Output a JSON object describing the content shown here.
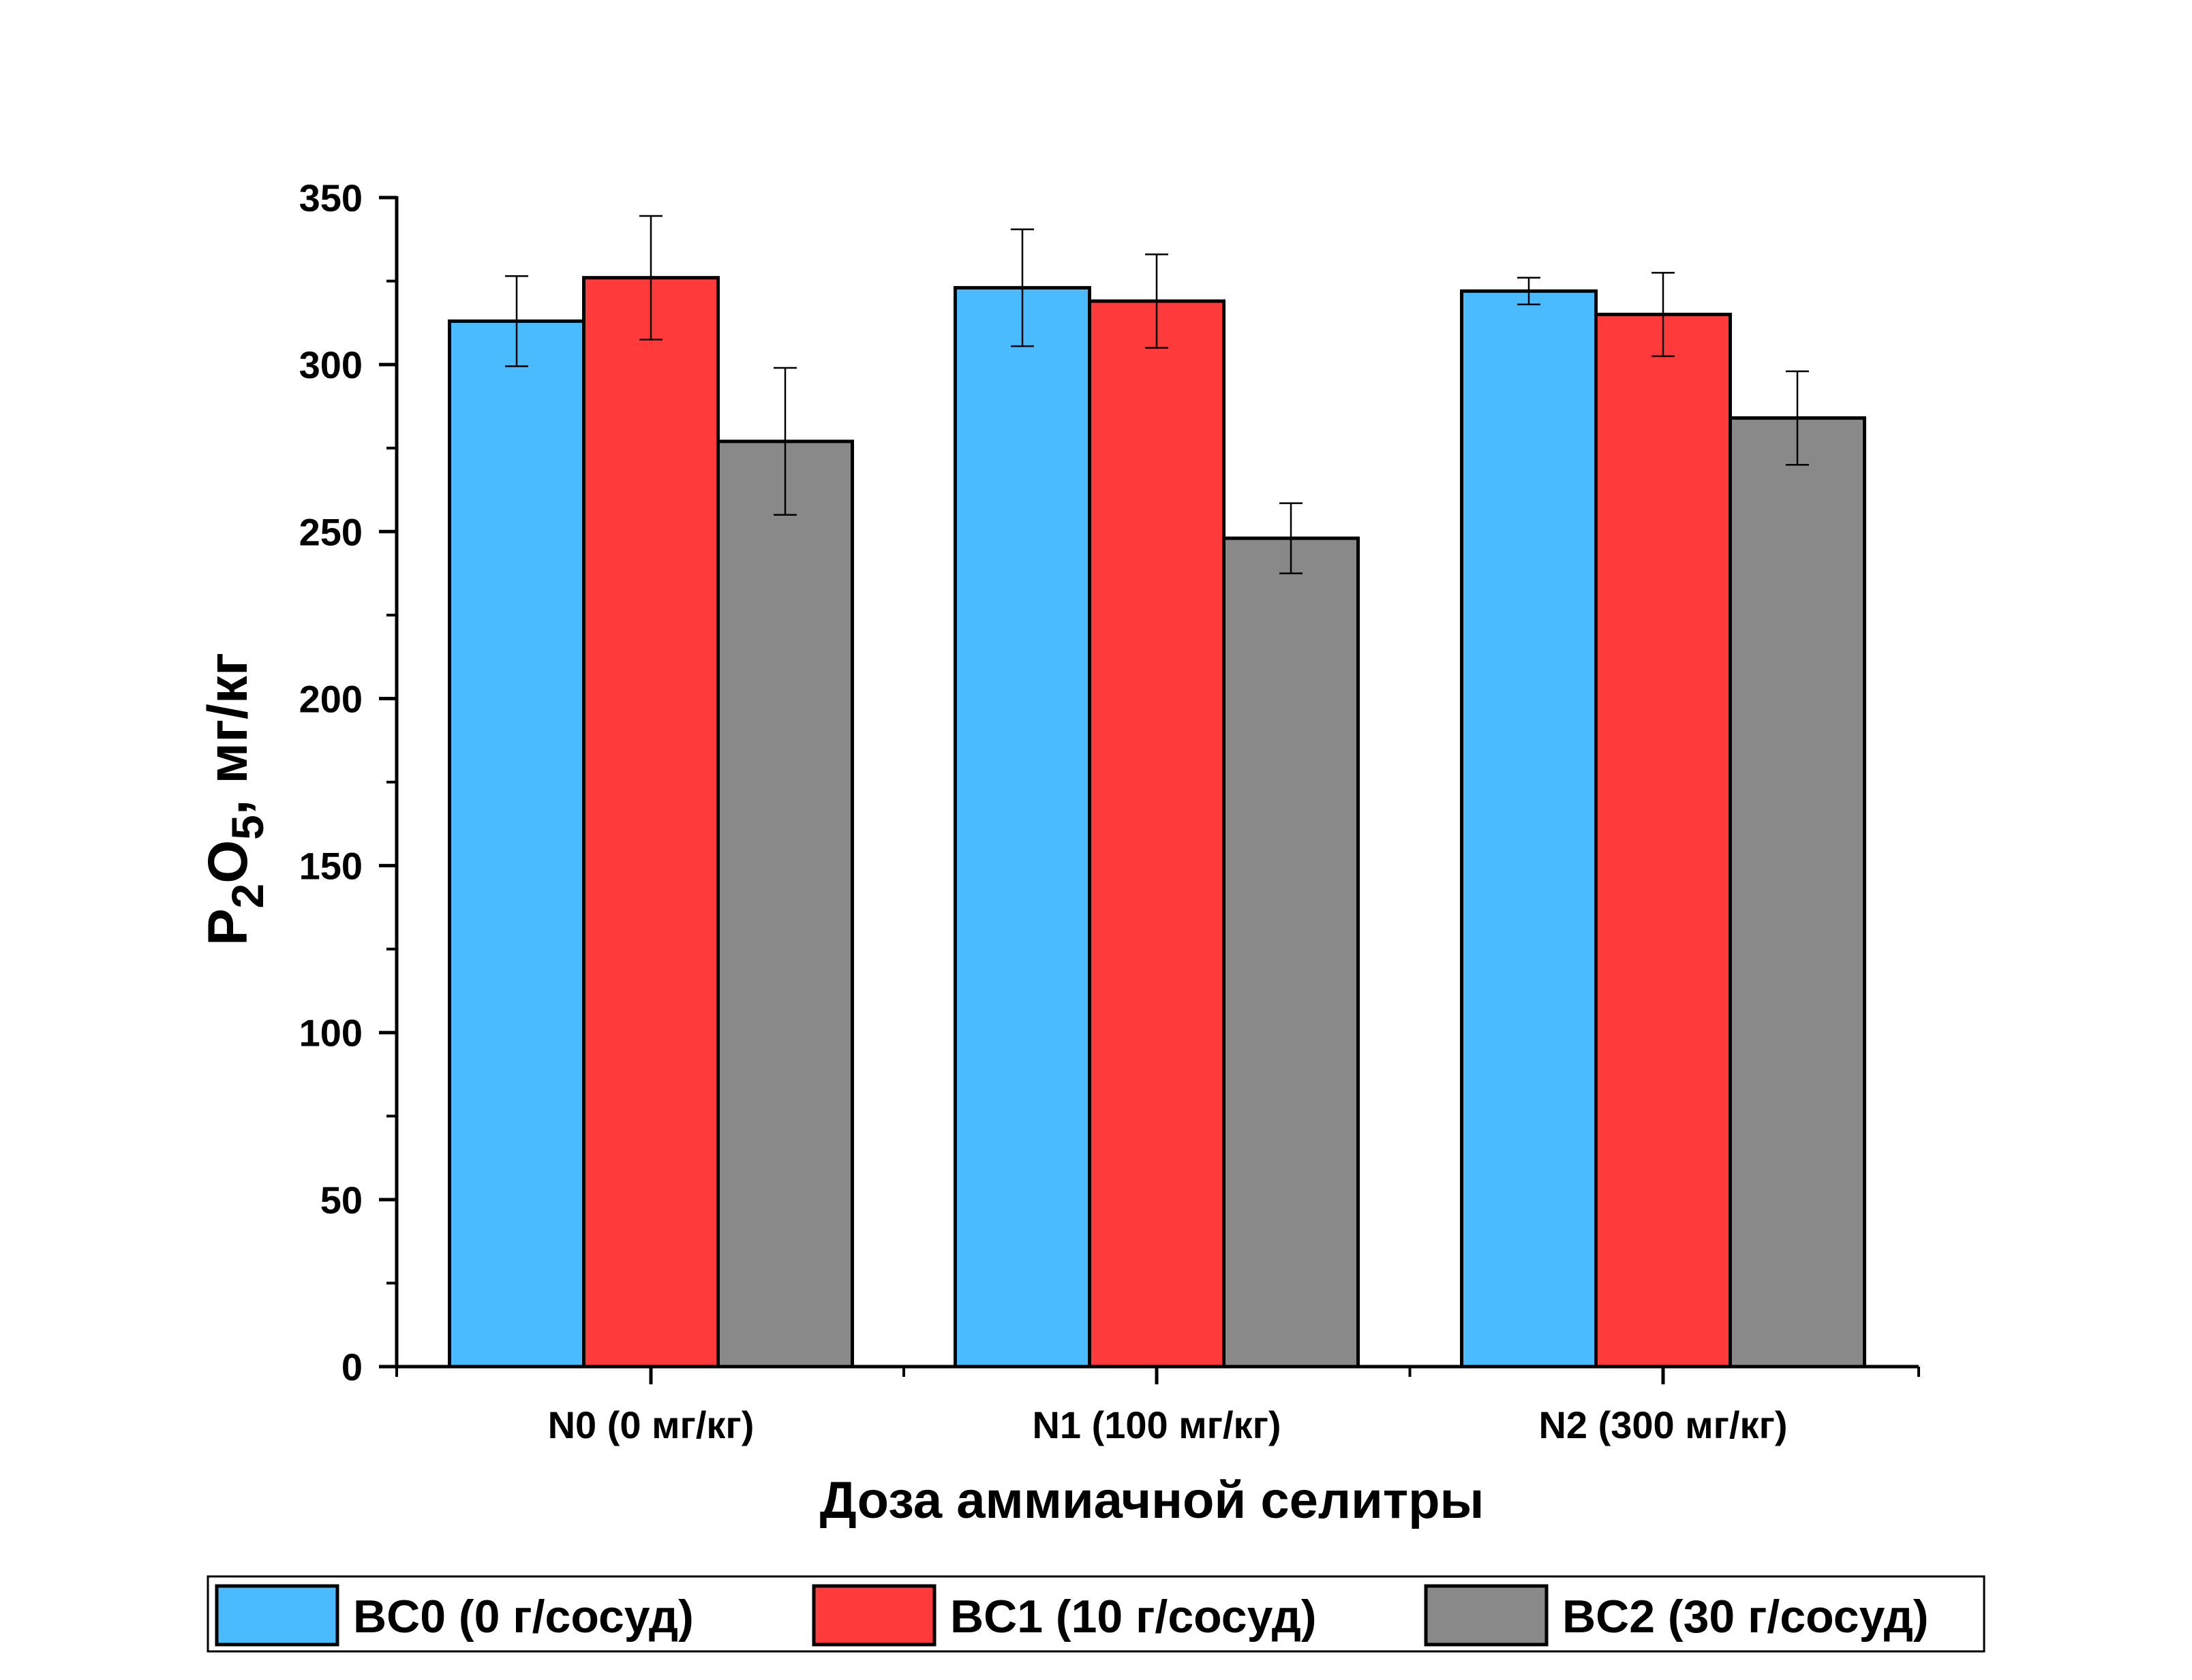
{
  "chart_data": {
    "type": "bar",
    "title": "",
    "xlabel": "Доза аммиачной селитры",
    "ylabel": {
      "p": "P",
      "sub1": "2",
      "o": "O",
      "sub2": "5",
      "rest": ", мг/кг"
    },
    "categories": [
      "N0 (0 мг/кг)",
      "N1 (100 мг/кг)",
      "N2 (300 мг/кг)"
    ],
    "ylim": [
      0,
      350
    ],
    "yticks": [
      0,
      50,
      100,
      150,
      200,
      250,
      300,
      350
    ],
    "grid": false,
    "legend_position": "bottom",
    "series": [
      {
        "name": "BC0 (0 г/сосуд)",
        "color": "#4bbbff",
        "values": [
          313,
          323,
          322
        ],
        "errors": [
          13.5,
          17.5,
          4
        ]
      },
      {
        "name": "BC1 (10 г/сосуд)",
        "color": "#ff3a3a",
        "values": [
          326,
          319,
          315
        ],
        "errors": [
          18.5,
          14,
          12.5
        ]
      },
      {
        "name": "BC2 (30 г/сосуд)",
        "color": "#898989",
        "values": [
          277,
          248,
          284
        ],
        "errors": [
          22,
          10.5,
          14
        ]
      }
    ]
  }
}
